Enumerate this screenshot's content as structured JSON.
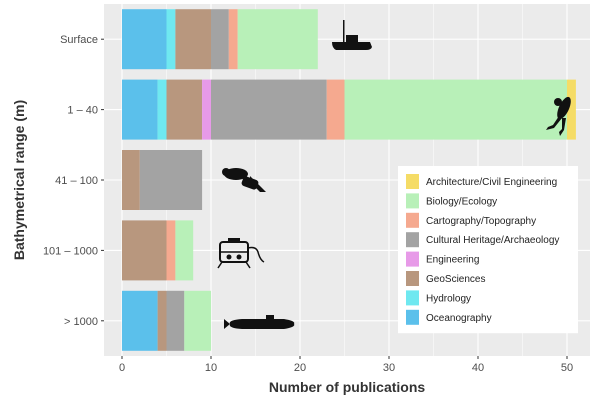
{
  "chart_data": {
    "type": "bar",
    "orientation": "horizontal",
    "stacked": true,
    "categories": [
      "Surface",
      "1 – 40",
      "41 – 100",
      "101 – 1000",
      "> 1000"
    ],
    "series": [
      {
        "name": "Oceanography",
        "color": "#5bc0eb",
        "values": [
          5,
          4,
          0,
          0,
          4
        ]
      },
      {
        "name": "Hydrology",
        "color": "#6fe8f0",
        "values": [
          1,
          1,
          0,
          0,
          0
        ]
      },
      {
        "name": "GeoSciences",
        "color": "#b8977e",
        "values": [
          4,
          4,
          2,
          5,
          1
        ]
      },
      {
        "name": "Engineering",
        "color": "#e79ae8",
        "values": [
          0,
          1,
          0,
          0,
          0
        ]
      },
      {
        "name": "Cultural Heritage/Archaeology",
        "color": "#a3a3a3",
        "values": [
          2,
          13,
          7,
          0,
          2
        ]
      },
      {
        "name": "Cartography/Topography",
        "color": "#f5a98f",
        "values": [
          1,
          2,
          0,
          1,
          0
        ]
      },
      {
        "name": "Biology/Ecology",
        "color": "#b8f0b8",
        "values": [
          9,
          25,
          0,
          2,
          3
        ]
      },
      {
        "name": "Architecture/Civil Engineering",
        "color": "#f5dc66",
        "values": [
          0,
          1,
          0,
          0,
          0
        ]
      }
    ],
    "legend_order": [
      "Architecture/Civil Engineering",
      "Biology/Ecology",
      "Cartography/Topography",
      "Cultural Heritage/Archaeology",
      "Engineering",
      "GeoSciences",
      "Hydrology",
      "Oceanography"
    ],
    "xlabel": "Number of publications",
    "ylabel": "Bathymetrical range (m)",
    "xlim": [
      0,
      53
    ],
    "xticks": [
      0,
      10,
      20,
      30,
      40,
      50
    ],
    "legend_position": "right",
    "background": "#ebebeb",
    "grid": true,
    "icons": [
      "boat-icon",
      "diver-icon",
      "scooter-diver-icon",
      "rov-icon",
      "submarine-icon"
    ]
  }
}
